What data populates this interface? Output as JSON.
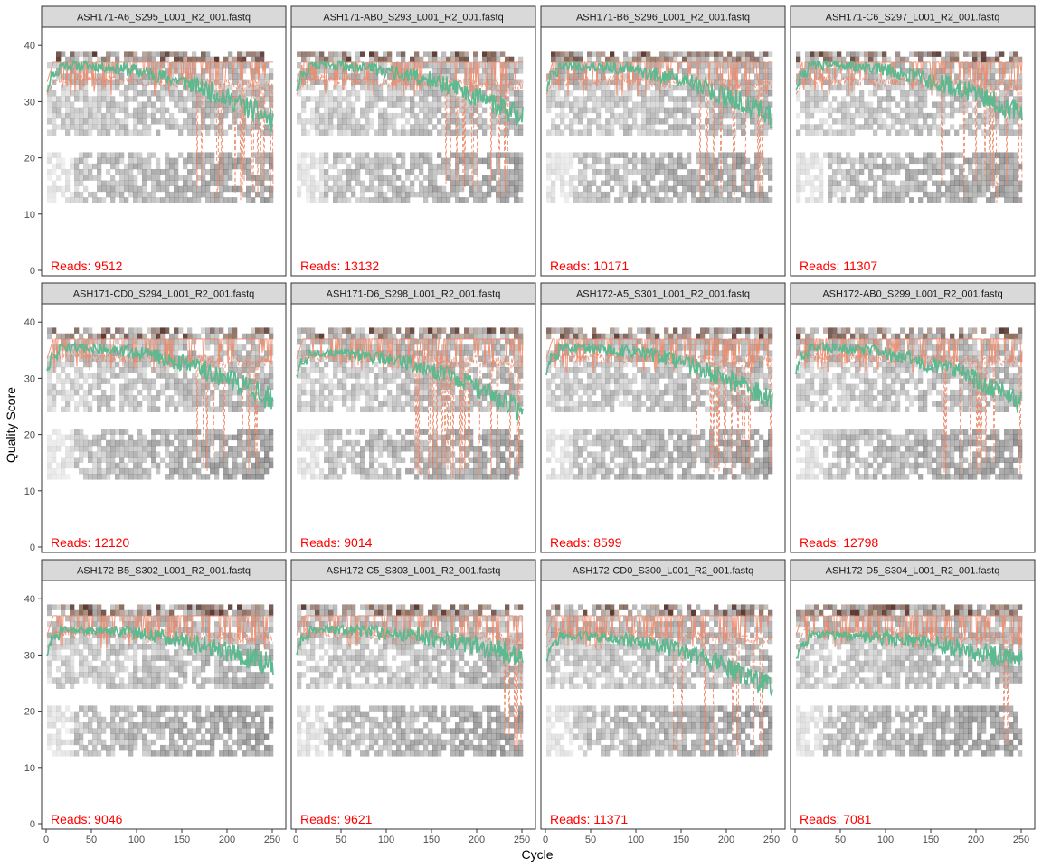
{
  "chart_data": {
    "type": "line",
    "xlabel": "Cycle",
    "ylabel": "Quality Score",
    "xlim": [
      0,
      250
    ],
    "ylim": [
      0,
      41
    ],
    "x_ticks": [
      "0",
      "50",
      "100",
      "150",
      "200",
      "250"
    ],
    "y_ticks": [
      "0",
      "10",
      "20",
      "30",
      "40"
    ],
    "reads_label": "Reads: ",
    "grid": false,
    "legend": "none",
    "colors": {
      "mean": "#5db98f",
      "quantile": "#f08a6a",
      "reads_text": "#ff0000",
      "strip_fill": "#d9d9d9",
      "panel_border": "#333333"
    },
    "facets": [
      {
        "title": "ASH171-A6_S295_L001_R2_001.fastq",
        "reads": "9512",
        "mean_start": 33,
        "mean_end": 26.5,
        "drop_start": 165
      },
      {
        "title": "ASH171-AB0_S293_L001_R2_001.fastq",
        "reads": "13132",
        "mean_start": 33,
        "mean_end": 27,
        "drop_start": 165
      },
      {
        "title": "ASH171-B6_S296_L001_R2_001.fastq",
        "reads": "10171",
        "mean_start": 33,
        "mean_end": 27,
        "drop_start": 170
      },
      {
        "title": "ASH171-C6_S297_L001_R2_001.fastq",
        "reads": "11307",
        "mean_start": 33,
        "mean_end": 27.5,
        "drop_start": 160
      },
      {
        "title": "ASH171-CD0_S294_L001_R2_001.fastq",
        "reads": "12120",
        "mean_start": 32,
        "mean_end": 26,
        "drop_start": 165
      },
      {
        "title": "ASH171-D6_S298_L001_R2_001.fastq",
        "reads": "9014",
        "mean_start": 31,
        "mean_end": 24,
        "drop_start": 130
      },
      {
        "title": "ASH172-A5_S301_L001_R2_001.fastq",
        "reads": "8599",
        "mean_start": 32,
        "mean_end": 26,
        "drop_start": 165
      },
      {
        "title": "ASH172-AB0_S299_L001_R2_001.fastq",
        "reads": "12798",
        "mean_start": 32,
        "mean_end": 25.5,
        "drop_start": 155
      },
      {
        "title": "ASH172-B5_S302_L001_R2_001.fastq",
        "reads": "9046",
        "mean_start": 31,
        "mean_end": 28,
        "drop_start": 225
      },
      {
        "title": "ASH172-C5_S303_L001_R2_001.fastq",
        "reads": "9621",
        "mean_start": 31,
        "mean_end": 29.5,
        "drop_start": 230
      },
      {
        "title": "ASH172-CD0_S300_L001_R2_001.fastq",
        "reads": "11371",
        "mean_start": 30,
        "mean_end": 24,
        "drop_start": 140
      },
      {
        "title": "ASH172-D5_S304_L001_R2_001.fastq",
        "reads": "7081",
        "mean_start": 30,
        "mean_end": 28.5,
        "drop_start": 230
      }
    ]
  }
}
